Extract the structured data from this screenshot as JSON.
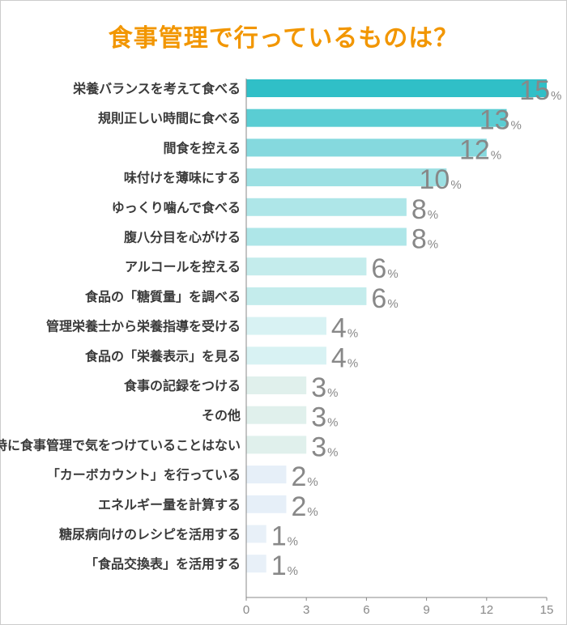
{
  "chart_data": {
    "type": "bar",
    "orientation": "horizontal",
    "title": "食事管理で行っているものは？",
    "categories": [
      "栄養バランスを考えて食べる",
      "規則正しい時間に食べる",
      "間食を控える",
      "味付けを薄味にする",
      "ゆっくり噛んで食べる",
      "腹八分目を心がける",
      "アルコールを控える",
      "食品の「糖質量」を調べる",
      "管理栄養士から栄養指導を受ける",
      "食品の「栄養表示」を見る",
      "食事の記録をつける",
      "その他",
      "特に食事管理で気をつけていることはない",
      "「カーボカウント」を行っている",
      "エネルギー量を計算する",
      "糖尿病向けのレシピを活用する",
      "「食品交換表」を活用する"
    ],
    "values": [
      15,
      13,
      12,
      10,
      8,
      8,
      6,
      6,
      4,
      4,
      3,
      3,
      3,
      2,
      2,
      1,
      1
    ],
    "unit": "%",
    "xlim": [
      0,
      15
    ],
    "xticks": [
      "0",
      "3",
      "6",
      "9",
      "12",
      "15"
    ],
    "grid": false,
    "colors": [
      "#30bfc7",
      "#5acdd3",
      "#85d9de",
      "#9ce0e3",
      "#aee6e8",
      "#aee6e8",
      "#c4ecec",
      "#c4ecec",
      "#d8f2f3",
      "#d8f2f3",
      "#e0f0ec",
      "#e0f0ec",
      "#e0f0ec",
      "#e6eff8",
      "#e6eff8",
      "#e8f0f8",
      "#e8f0f8"
    ],
    "title_color": "#f29600"
  }
}
